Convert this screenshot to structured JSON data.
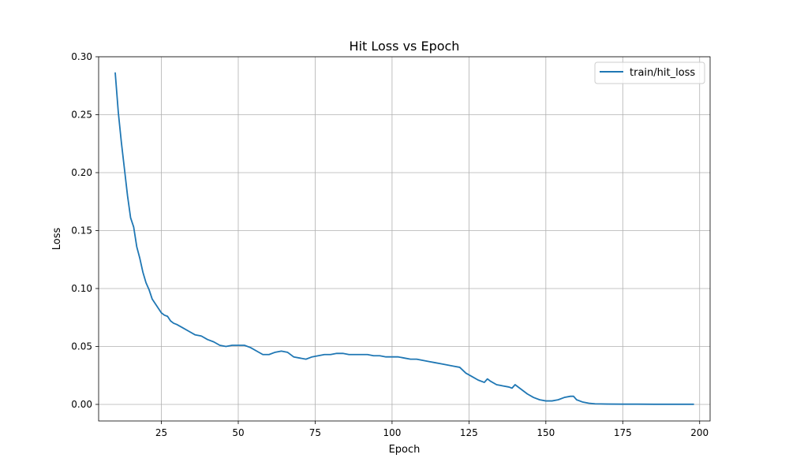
{
  "chart_data": {
    "type": "line",
    "title": "Hit Loss vs Epoch",
    "xlabel": "Epoch",
    "ylabel": "Loss",
    "xlim": [
      4.6,
      203.4
    ],
    "ylim": [
      -0.0143,
      0.3
    ],
    "xticks": [
      25,
      50,
      75,
      100,
      125,
      150,
      175,
      200
    ],
    "yticks": [
      0.0,
      0.05,
      0.1,
      0.15,
      0.2,
      0.25,
      0.3
    ],
    "ytick_labels": [
      "0.00",
      "0.05",
      "0.10",
      "0.15",
      "0.20",
      "0.25",
      "0.30"
    ],
    "grid": true,
    "legend_position": "top-right",
    "series": [
      {
        "name": "train/hit_loss",
        "color": "#1f77b4",
        "x": [
          10,
          11,
          12,
          13,
          14,
          15,
          16,
          17,
          18,
          19,
          20,
          21,
          22,
          23,
          24,
          25,
          26,
          27,
          28,
          29,
          30,
          32,
          34,
          36,
          38,
          40,
          42,
          44,
          46,
          48,
          50,
          52,
          54,
          56,
          58,
          60,
          62,
          64,
          66,
          68,
          70,
          72,
          74,
          76,
          78,
          80,
          82,
          84,
          86,
          88,
          90,
          92,
          94,
          96,
          98,
          100,
          102,
          104,
          106,
          108,
          110,
          112,
          114,
          116,
          118,
          120,
          122,
          124,
          126,
          128,
          130,
          131,
          132,
          134,
          136,
          138,
          139,
          140,
          142,
          144,
          146,
          148,
          150,
          152,
          154,
          156,
          158,
          159,
          160,
          162,
          164,
          166,
          170,
          175,
          180,
          185,
          190,
          195,
          198
        ],
        "y": [
          0.286,
          0.252,
          0.226,
          0.203,
          0.18,
          0.161,
          0.153,
          0.136,
          0.126,
          0.114,
          0.105,
          0.099,
          0.091,
          0.087,
          0.083,
          0.079,
          0.077,
          0.076,
          0.072,
          0.07,
          0.069,
          0.066,
          0.063,
          0.06,
          0.059,
          0.056,
          0.054,
          0.051,
          0.05,
          0.051,
          0.051,
          0.051,
          0.049,
          0.046,
          0.043,
          0.043,
          0.045,
          0.046,
          0.045,
          0.041,
          0.04,
          0.039,
          0.041,
          0.042,
          0.043,
          0.043,
          0.044,
          0.044,
          0.043,
          0.043,
          0.043,
          0.043,
          0.042,
          0.042,
          0.041,
          0.041,
          0.041,
          0.04,
          0.039,
          0.039,
          0.038,
          0.037,
          0.036,
          0.035,
          0.034,
          0.033,
          0.032,
          0.027,
          0.024,
          0.021,
          0.019,
          0.022,
          0.02,
          0.017,
          0.016,
          0.015,
          0.014,
          0.017,
          0.013,
          0.009,
          0.006,
          0.004,
          0.003,
          0.003,
          0.004,
          0.006,
          0.007,
          0.007,
          0.004,
          0.002,
          0.001,
          0.0005,
          0.0003,
          0.0002,
          0.0002,
          0.0001,
          0.0001,
          0.0001,
          0.0001
        ]
      }
    ]
  }
}
